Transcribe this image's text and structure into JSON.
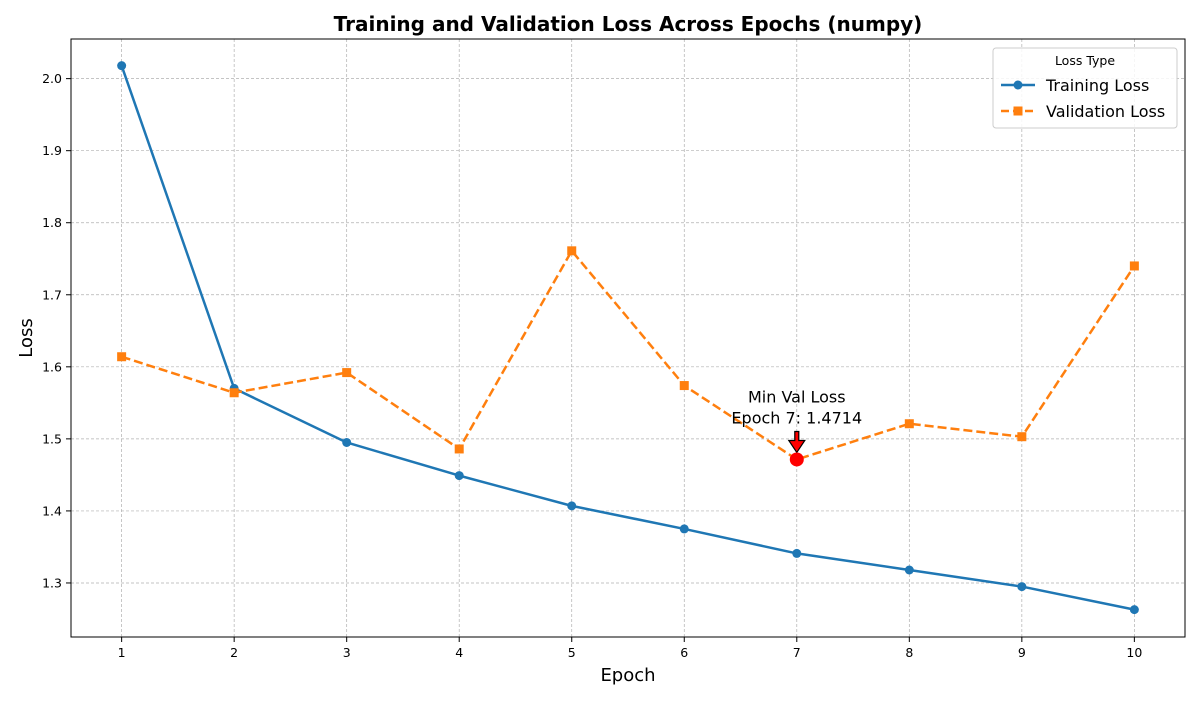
{
  "chart_data": {
    "type": "line",
    "title": "Training and Validation Loss Across Epochs (numpy)",
    "xlabel": "Epoch",
    "ylabel": "Loss",
    "x": [
      1,
      2,
      3,
      4,
      5,
      6,
      7,
      8,
      9,
      10
    ],
    "xlim": [
      0.55,
      10.45
    ],
    "ylim": [
      1.225,
      2.055
    ],
    "xticks": [
      1,
      2,
      3,
      4,
      5,
      6,
      7,
      8,
      9,
      10
    ],
    "yticks": [
      "1.3",
      "1.4",
      "1.5",
      "1.6",
      "1.7",
      "1.8",
      "1.9",
      "2.0"
    ],
    "grid": true,
    "legend": {
      "title": "Loss Type",
      "placement": "top-right"
    },
    "series": [
      {
        "name": "Training Loss",
        "color": "#1f77b4",
        "line_style": "solid",
        "marker": "circle",
        "values": [
          2.018,
          1.57,
          1.495,
          1.449,
          1.407,
          1.375,
          1.341,
          1.318,
          1.295,
          1.263
        ]
      },
      {
        "name": "Validation Loss",
        "color": "#ff7f0e",
        "line_style": "dashed",
        "marker": "square",
        "values": [
          1.614,
          1.564,
          1.592,
          1.486,
          1.761,
          1.574,
          1.4714,
          1.521,
          1.503,
          1.74
        ]
      }
    ],
    "annotations": [
      {
        "line1": "Min Val Loss",
        "line2": "Epoch 7: 1.4714",
        "x": 7,
        "y": 1.4714,
        "marker_color": "#ff0000"
      }
    ]
  }
}
